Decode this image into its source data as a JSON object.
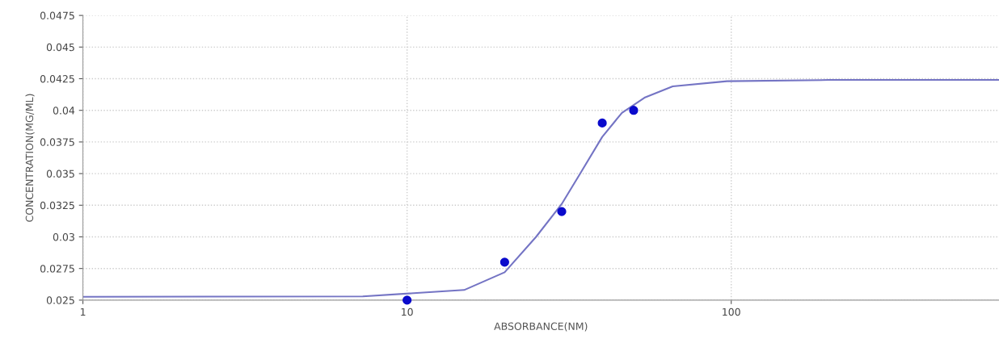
{
  "chart_data": {
    "type": "scatter",
    "xlabel": "ABSORBANCE(NM)",
    "ylabel": "CONCENTRATION(MG/ML)",
    "log": "x",
    "xlim": [
      1,
      670
    ],
    "xticks": [
      1,
      10,
      100
    ],
    "ylim": [
      0.025,
      0.0475
    ],
    "yticks": [
      {
        "value": 0.025,
        "label": "0.025"
      },
      {
        "value": 0.0275,
        "label": "0.0275"
      },
      {
        "value": 0.03,
        "label": "0.03"
      },
      {
        "value": 0.0325,
        "label": "0.0325"
      },
      {
        "value": 0.035,
        "label": "0.035"
      },
      {
        "value": 0.0375,
        "label": "0.0375"
      },
      {
        "value": 0.04,
        "label": "0.04"
      },
      {
        "value": 0.0425,
        "label": "0.0425"
      },
      {
        "value": 0.045,
        "label": "0.045"
      },
      {
        "value": 0.0475,
        "label": "0.0475"
      }
    ],
    "grid": true,
    "series": [
      {
        "type": "line",
        "color": "#7474c4",
        "marker": "none",
        "line_style": "solid",
        "x": [
          1,
          7.3,
          15,
          20,
          25,
          30,
          34,
          40,
          46,
          54,
          66,
          97,
          200,
          670
        ],
        "values": [
          0.02526,
          0.0253,
          0.0258,
          0.0272,
          0.03,
          0.0326,
          0.0349,
          0.0379,
          0.0398,
          0.041,
          0.0419,
          0.0423,
          0.0424,
          0.0424
        ]
      },
      {
        "color": "#0a0acc",
        "marker": "circle",
        "x": [
          10,
          20,
          30,
          40,
          50
        ],
        "values": [
          0.025,
          0.028,
          0.032,
          0.039,
          0.04
        ]
      }
    ]
  }
}
